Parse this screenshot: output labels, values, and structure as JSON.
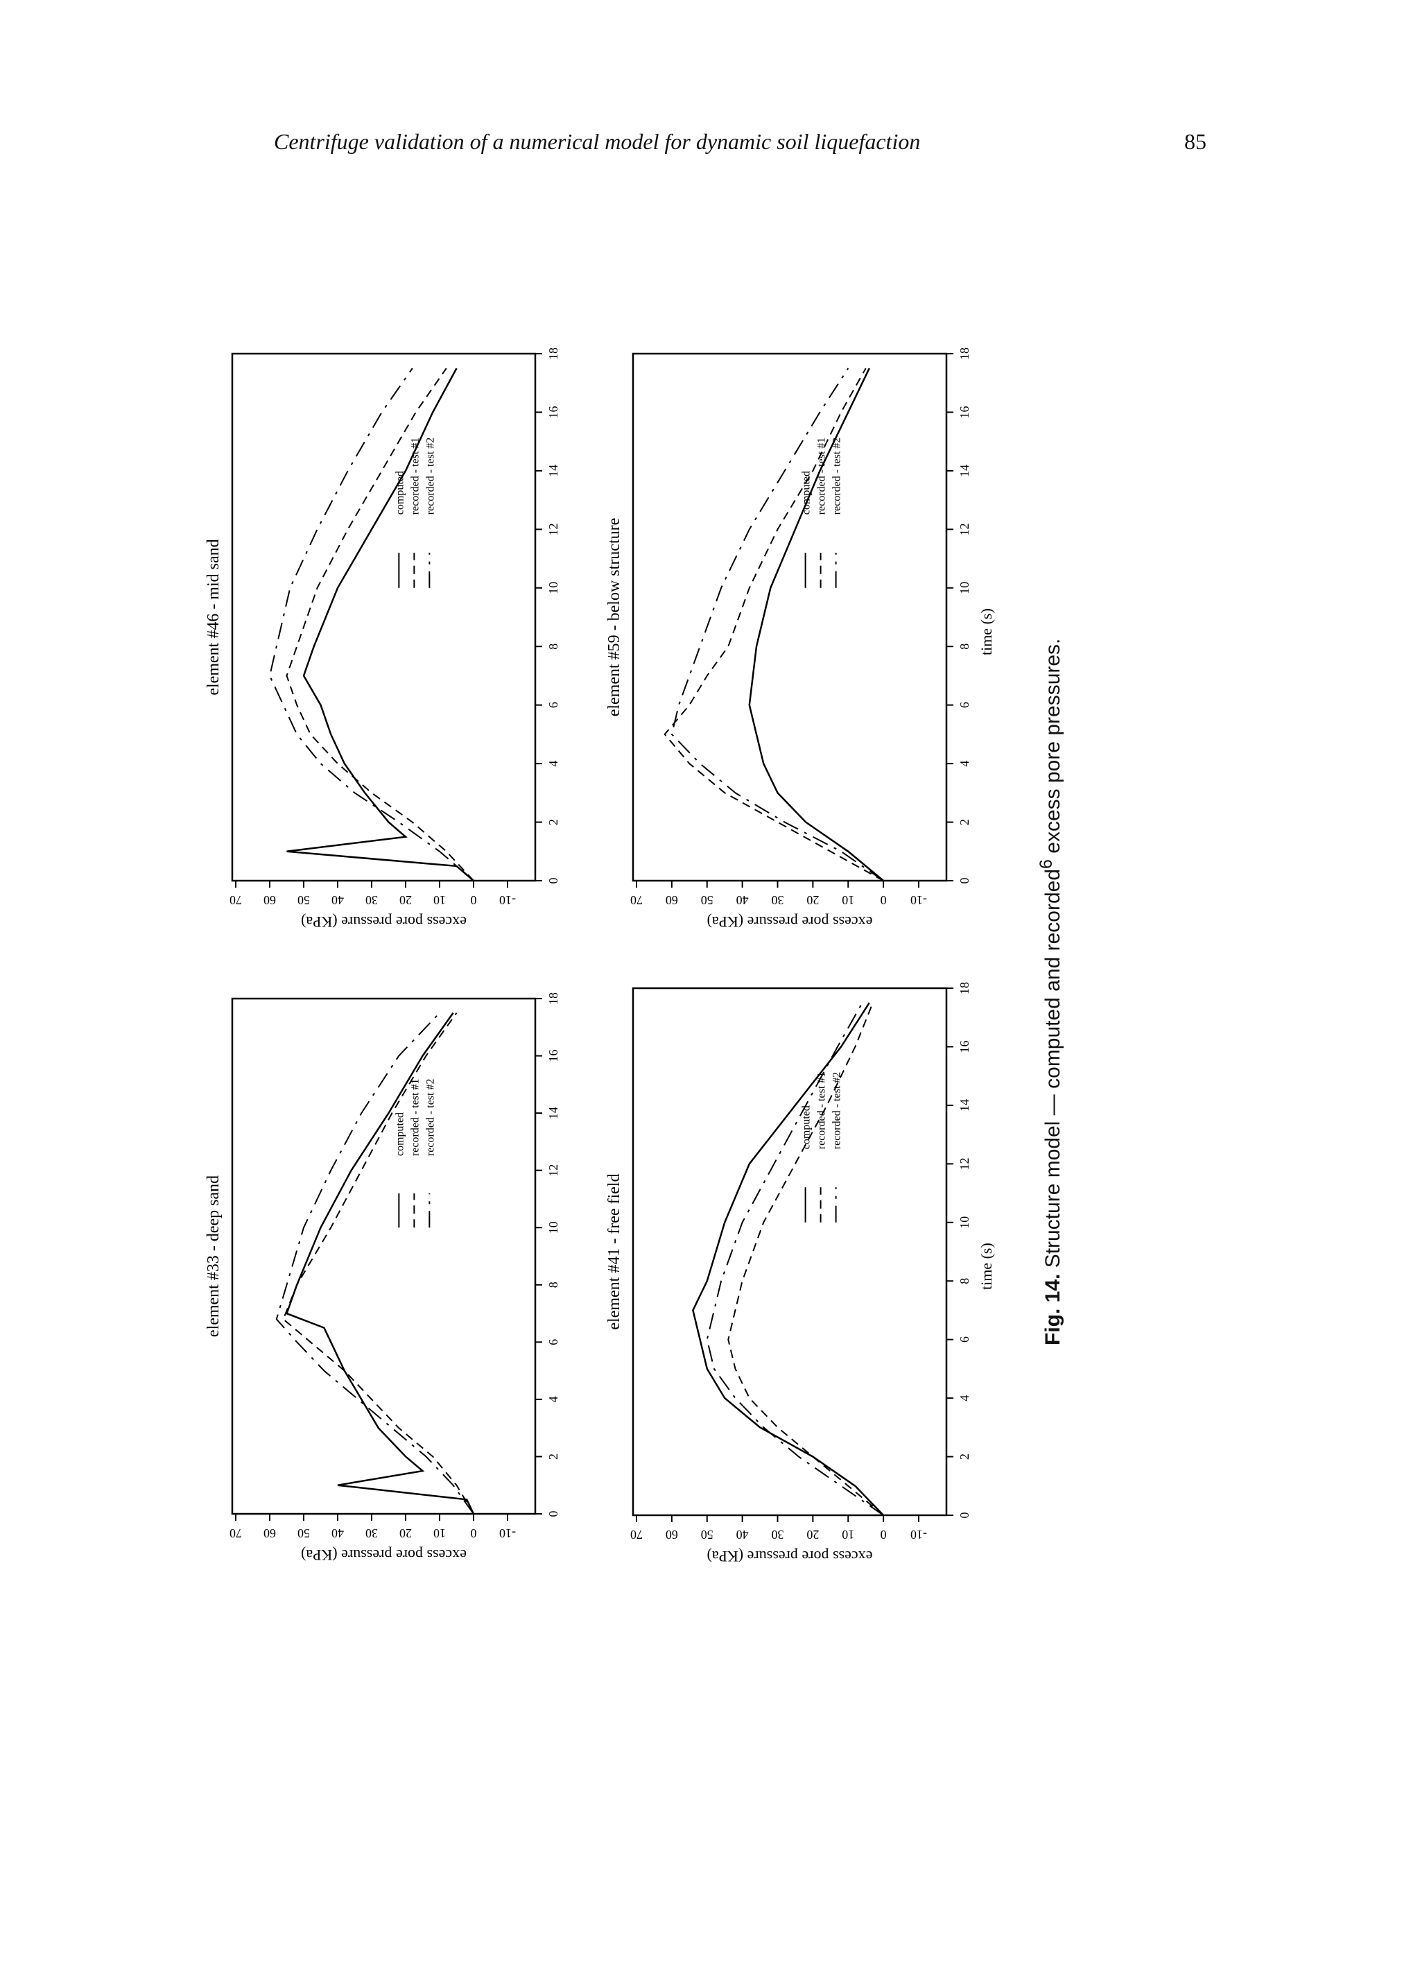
{
  "header": {
    "running_title": "Centrifuge validation of a numerical model for dynamic soil liquefaction",
    "page_number": "85"
  },
  "caption": {
    "label": "Fig. 14.",
    "text_before_ref": "Structure model — computed and recorded",
    "ref": "6",
    "text_after_ref": " excess pore pressures."
  },
  "chart_data": [
    {
      "type": "line",
      "title": "element #33 - deep sand",
      "xlabel": "",
      "ylabel": "excess pore pressure (KPa)",
      "xlim": [
        0,
        18
      ],
      "ylim": [
        -10,
        70
      ],
      "xticks": [
        "0",
        "2",
        "4",
        "6",
        "8",
        "10",
        "12",
        "14",
        "16",
        "18"
      ],
      "yticks": [
        "-10",
        "0",
        "10",
        "20",
        "30",
        "40",
        "50",
        "60",
        "70"
      ],
      "legend": [
        "computed",
        "recorded - test #1",
        "recorded - test #2"
      ],
      "series": [
        {
          "name": "computed",
          "values": [
            [
              0,
              0
            ],
            [
              0.5,
              2
            ],
            [
              1,
              40
            ],
            [
              1.5,
              15
            ],
            [
              2,
              20
            ],
            [
              3,
              28
            ],
            [
              4,
              33
            ],
            [
              5,
              38
            ],
            [
              6,
              42
            ],
            [
              6.5,
              44
            ],
            [
              7,
              55
            ],
            [
              8,
              52
            ],
            [
              10,
              45
            ],
            [
              12,
              36
            ],
            [
              14,
              25
            ],
            [
              16,
              15
            ],
            [
              17.5,
              6
            ]
          ]
        },
        {
          "name": "recorded - test #1",
          "values": [
            [
              0,
              0
            ],
            [
              1,
              5
            ],
            [
              2,
              12
            ],
            [
              3,
              22
            ],
            [
              4,
              30
            ],
            [
              5,
              38
            ],
            [
              6,
              48
            ],
            [
              6.8,
              56
            ],
            [
              8,
              52
            ],
            [
              10,
              42
            ],
            [
              12,
              33
            ],
            [
              14,
              24
            ],
            [
              16,
              14
            ],
            [
              17.5,
              5
            ]
          ]
        },
        {
          "name": "recorded - test #2",
          "values": [
            [
              0,
              0
            ],
            [
              1,
              6
            ],
            [
              2,
              14
            ],
            [
              3,
              24
            ],
            [
              4,
              34
            ],
            [
              5,
              44
            ],
            [
              6,
              52
            ],
            [
              6.8,
              58
            ],
            [
              8,
              55
            ],
            [
              10,
              50
            ],
            [
              12,
              42
            ],
            [
              14,
              33
            ],
            [
              16,
              22
            ],
            [
              17.5,
              10
            ]
          ]
        }
      ]
    },
    {
      "type": "line",
      "title": "element #46 - mid sand",
      "xlabel": "",
      "ylabel": "excess pore pressure (KPa)",
      "xlim": [
        0,
        18
      ],
      "ylim": [
        -10,
        70
      ],
      "xticks": [
        "0",
        "2",
        "4",
        "6",
        "8",
        "10",
        "12",
        "14",
        "16",
        "18"
      ],
      "yticks": [
        "-10",
        "0",
        "10",
        "20",
        "30",
        "40",
        "50",
        "60",
        "70"
      ],
      "legend": [
        "computed",
        "recorded - test #1",
        "recorded - test #2"
      ],
      "series": [
        {
          "name": "computed",
          "values": [
            [
              0,
              0
            ],
            [
              0.5,
              5
            ],
            [
              1,
              55
            ],
            [
              1.5,
              20
            ],
            [
              2,
              25
            ],
            [
              3,
              32
            ],
            [
              4,
              38
            ],
            [
              5,
              42
            ],
            [
              6,
              45
            ],
            [
              7,
              50
            ],
            [
              8,
              47
            ],
            [
              10,
              40
            ],
            [
              12,
              30
            ],
            [
              14,
              20
            ],
            [
              16,
              12
            ],
            [
              17.5,
              5
            ]
          ]
        },
        {
          "name": "recorded - test #1",
          "values": [
            [
              0,
              0
            ],
            [
              1,
              8
            ],
            [
              2,
              18
            ],
            [
              3,
              30
            ],
            [
              4,
              40
            ],
            [
              5,
              48
            ],
            [
              6,
              52
            ],
            [
              7,
              55
            ],
            [
              8,
              52
            ],
            [
              10,
              46
            ],
            [
              12,
              37
            ],
            [
              14,
              27
            ],
            [
              16,
              17
            ],
            [
              17.5,
              8
            ]
          ]
        },
        {
          "name": "recorded - test #2",
          "values": [
            [
              0,
              0
            ],
            [
              1,
              10
            ],
            [
              2,
              22
            ],
            [
              3,
              35
            ],
            [
              4,
              45
            ],
            [
              5,
              52
            ],
            [
              6,
              56
            ],
            [
              7,
              60
            ],
            [
              8,
              58
            ],
            [
              10,
              54
            ],
            [
              12,
              46
            ],
            [
              14,
              37
            ],
            [
              16,
              27
            ],
            [
              17.5,
              18
            ]
          ]
        }
      ]
    },
    {
      "type": "line",
      "title": "element #41 - free field",
      "xlabel": "time (s)",
      "ylabel": "excess pore pressure (KPa)",
      "xlim": [
        0,
        18
      ],
      "ylim": [
        -10,
        70
      ],
      "xticks": [
        "0",
        "2",
        "4",
        "6",
        "8",
        "10",
        "12",
        "14",
        "16",
        "18"
      ],
      "yticks": [
        "-10",
        "0",
        "10",
        "20",
        "30",
        "40",
        "50",
        "60",
        "70"
      ],
      "legend": [
        "computed",
        "recorded - test #1",
        "recorded - test #2"
      ],
      "series": [
        {
          "name": "computed",
          "values": [
            [
              0,
              0
            ],
            [
              1,
              8
            ],
            [
              2,
              20
            ],
            [
              3,
              35
            ],
            [
              4,
              45
            ],
            [
              5,
              50
            ],
            [
              6,
              52
            ],
            [
              7,
              54
            ],
            [
              8,
              50
            ],
            [
              10,
              45
            ],
            [
              12,
              38
            ],
            [
              14,
              25
            ],
            [
              16,
              12
            ],
            [
              17.5,
              4
            ]
          ]
        },
        {
          "name": "recorded - test #1",
          "values": [
            [
              0,
              0
            ],
            [
              1,
              10
            ],
            [
              2,
              20
            ],
            [
              3,
              30
            ],
            [
              4,
              38
            ],
            [
              5,
              42
            ],
            [
              6,
              44
            ],
            [
              8,
              40
            ],
            [
              10,
              34
            ],
            [
              12,
              25
            ],
            [
              14,
              16
            ],
            [
              16,
              8
            ],
            [
              17.5,
              3
            ]
          ]
        },
        {
          "name": "recorded - test #2",
          "values": [
            [
              0,
              0
            ],
            [
              1,
              12
            ],
            [
              2,
              24
            ],
            [
              3,
              34
            ],
            [
              4,
              42
            ],
            [
              5,
              48
            ],
            [
              6,
              50
            ],
            [
              8,
              46
            ],
            [
              10,
              40
            ],
            [
              12,
              31
            ],
            [
              14,
              22
            ],
            [
              16,
              13
            ],
            [
              17.5,
              6
            ]
          ]
        }
      ]
    },
    {
      "type": "line",
      "title": "element #59 - below structure",
      "xlabel": "time (s)",
      "ylabel": "excess pore pressure (KPa)",
      "xlim": [
        0,
        18
      ],
      "ylim": [
        -10,
        70
      ],
      "xticks": [
        "0",
        "2",
        "4",
        "6",
        "8",
        "10",
        "12",
        "14",
        "16",
        "18"
      ],
      "yticks": [
        "-10",
        "0",
        "10",
        "20",
        "30",
        "40",
        "50",
        "60",
        "70"
      ],
      "legend": [
        "computed",
        "recorded - test #1",
        "recorded - test #2"
      ],
      "series": [
        {
          "name": "computed",
          "values": [
            [
              0,
              0
            ],
            [
              1,
              10
            ],
            [
              2,
              22
            ],
            [
              3,
              30
            ],
            [
              4,
              34
            ],
            [
              5,
              36
            ],
            [
              6,
              38
            ],
            [
              8,
              36
            ],
            [
              10,
              32
            ],
            [
              12,
              25
            ],
            [
              14,
              18
            ],
            [
              16,
              10
            ],
            [
              17.5,
              4
            ]
          ]
        },
        {
          "name": "recorded - test #1",
          "values": [
            [
              0,
              0
            ],
            [
              1,
              15
            ],
            [
              2,
              30
            ],
            [
              3,
              45
            ],
            [
              4,
              55
            ],
            [
              5,
              62
            ],
            [
              6,
              55
            ],
            [
              7,
              50
            ],
            [
              8,
              44
            ],
            [
              10,
              38
            ],
            [
              12,
              30
            ],
            [
              14,
              20
            ],
            [
              16,
              12
            ],
            [
              17.5,
              5
            ]
          ]
        },
        {
          "name": "recorded - test #2",
          "values": [
            [
              0,
              0
            ],
            [
              1,
              12
            ],
            [
              2,
              28
            ],
            [
              3,
              42
            ],
            [
              4,
              52
            ],
            [
              5,
              60
            ],
            [
              6,
              58
            ],
            [
              7,
              55
            ],
            [
              8,
              52
            ],
            [
              10,
              46
            ],
            [
              12,
              38
            ],
            [
              14,
              28
            ],
            [
              16,
              18
            ],
            [
              17.5,
              10
            ]
          ]
        }
      ]
    }
  ]
}
